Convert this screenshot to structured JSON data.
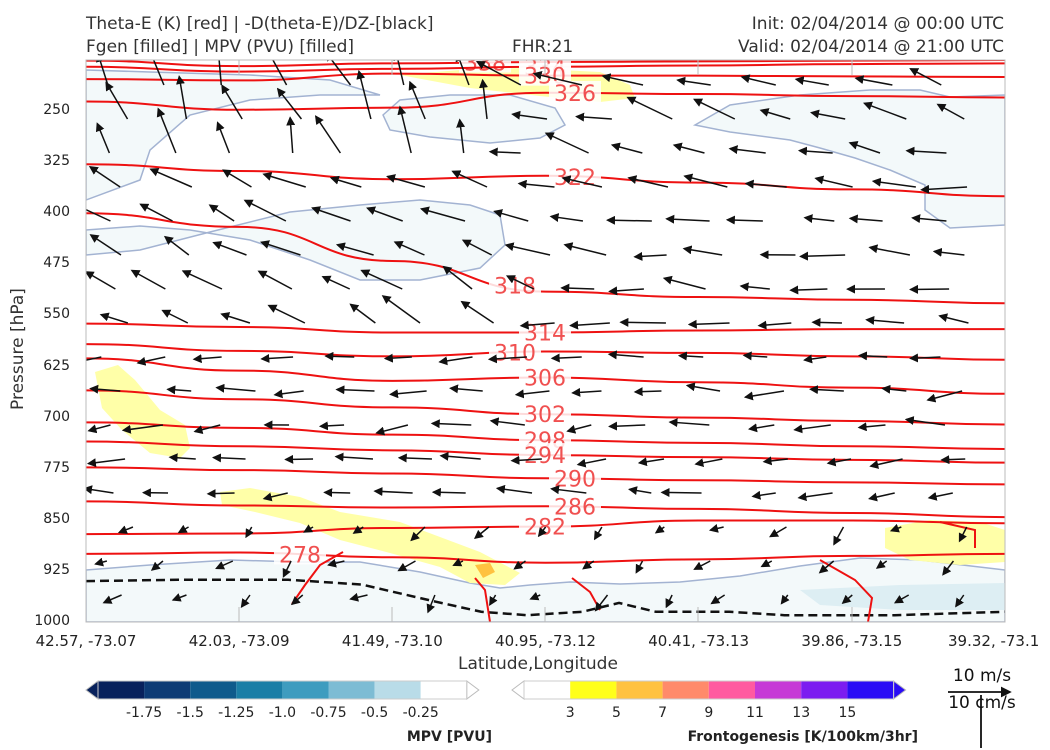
{
  "header": {
    "title_line1": "Theta-E (K) [red] | -D(theta-E)/DZ-[black]",
    "title_line2": "Fgen [filled] | MPV (PVU) [filled]",
    "fhr": "FHR:21",
    "init": "Init: 02/04/2014 @ 00:00 UTC",
    "valid": "Valid: 02/04/2014 @ 21:00 UTC"
  },
  "chart_data": {
    "type": "cross-section",
    "ylabel": "Pressure [hPa]",
    "xlabel": "Latitude,Longitude",
    "y_ticks": [
      250,
      325,
      400,
      475,
      550,
      625,
      700,
      775,
      850,
      925,
      1000
    ],
    "ylim": [
      1000,
      175
    ],
    "x_ticks": [
      "42.57, -73.07",
      "42.03, -73.09",
      "41.49, -73.10",
      "40.95, -73.12",
      "40.41, -73.13",
      "39.86, -73.15",
      "39.32, -73.1"
    ],
    "theta_e_contours": [
      {
        "label": "338",
        "y": [
          176,
          184,
          180,
          178,
          177,
          176,
          175
        ]
      },
      {
        "label": "334",
        "y": [
          185,
          192,
          188,
          185,
          183,
          181,
          180
        ]
      },
      {
        "label": "330",
        "y": [
          203,
          205,
          195,
          198,
          198,
          199,
          200
        ]
      },
      {
        "label": "326",
        "y": [
          236,
          248,
          245,
          223,
          225,
          228,
          230
        ]
      },
      {
        "label": "322",
        "y": [
          328,
          338,
          350,
          345,
          355,
          365,
          375
        ]
      },
      {
        "label": "318",
        "y": [
          400,
          420,
          470,
          515,
          523,
          527,
          532
        ]
      },
      {
        "label": "314",
        "y": [
          562,
          567,
          575,
          575,
          572,
          570,
          570
        ]
      },
      {
        "label": "310",
        "y": [
          592,
          602,
          610,
          603,
          605,
          610,
          615
        ]
      },
      {
        "label": "306",
        "y": [
          613,
          631,
          646,
          641,
          648,
          656,
          665
        ]
      },
      {
        "label": "302",
        "y": [
          660,
          673,
          685,
          695,
          700,
          705,
          710
        ]
      },
      {
        "label": "298",
        "y": [
          707,
          715,
          725,
          733,
          737,
          742,
          746
        ]
      },
      {
        "label": "294",
        "y": [
          735,
          742,
          748,
          755,
          758,
          762,
          766
        ]
      },
      {
        "label": "290",
        "y": [
          773,
          777,
          782,
          789,
          792,
          795,
          798
        ]
      },
      {
        "label": "286",
        "y": [
          823,
          829,
          832,
          830,
          834,
          840,
          846
        ]
      },
      {
        "label": "282",
        "y": [
          871,
          870,
          862,
          860,
          851,
          851,
          855
        ]
      },
      {
        "label": "278",
        "y": [
          900,
          898,
          905,
          913,
          908,
          903,
          900
        ]
      }
    ],
    "dthetae_dz_zero_contour": [
      {
        "x": 0.0,
        "p": 940
      },
      {
        "x": 0.1,
        "p": 938
      },
      {
        "x": 0.22,
        "p": 938
      },
      {
        "x": 0.3,
        "p": 945
      },
      {
        "x": 0.38,
        "p": 970
      },
      {
        "x": 0.43,
        "p": 985
      },
      {
        "x": 0.48,
        "p": 990
      },
      {
        "x": 0.54,
        "p": 985
      },
      {
        "x": 0.58,
        "p": 972
      },
      {
        "x": 0.62,
        "p": 985
      },
      {
        "x": 0.7,
        "p": 985
      },
      {
        "x": 0.76,
        "p": 990
      },
      {
        "x": 0.88,
        "p": 990
      },
      {
        "x": 1.0,
        "p": 985
      }
    ],
    "wind_reference": {
      "label_top": "10 m/s",
      "label_bottom": "10 cm/s"
    },
    "mpv_colorbar": {
      "title": "MPV [PVU]",
      "ticks": [
        "-1.75",
        "-1.5",
        "-1.25",
        "-1.0",
        "-0.75",
        "-0.5",
        "-0.25"
      ],
      "colors": [
        "#08215c",
        "#0d3b75",
        "#0f5a8c",
        "#1b7ea6",
        "#3e9cbf",
        "#7dbcd4",
        "#b9dce8",
        "#ffffff"
      ]
    },
    "fgen_colorbar": {
      "title": "Frontogenesis [K/100km/3hr]",
      "ticks": [
        "3",
        "5",
        "7",
        "9",
        "11",
        "13",
        "15"
      ],
      "colors": [
        "#ffffff",
        "#ffff1a",
        "#ffc240",
        "#ff8a6a",
        "#ff5aa0",
        "#c63ad6",
        "#7c1cf0",
        "#2a0cf5"
      ]
    }
  }
}
